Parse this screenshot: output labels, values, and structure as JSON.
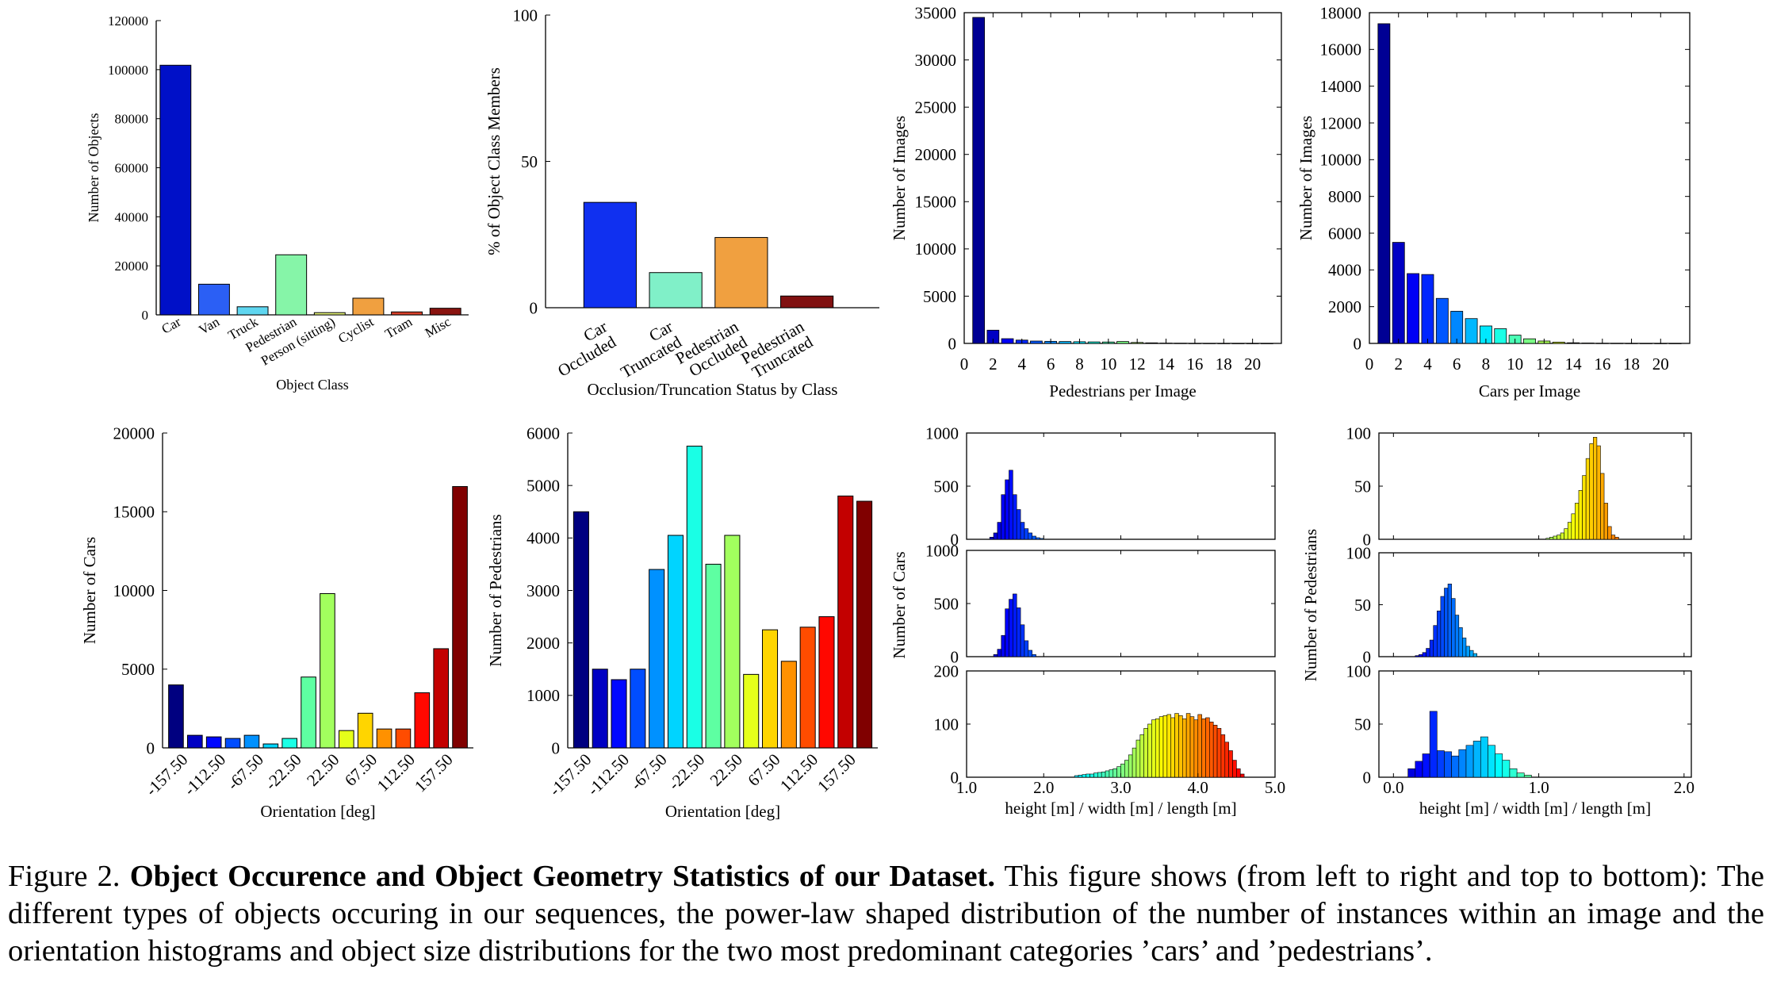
{
  "chart_data": [
    {
      "id": "object-class",
      "type": "bar",
      "categories": [
        "Car",
        "Van",
        "Truck",
        "Pedestrian",
        "Person (sitting)",
        "Cyclist",
        "Tram",
        "Misc"
      ],
      "values": [
        101800,
        12500,
        3300,
        24500,
        900,
        6800,
        1200,
        2700
      ],
      "colors": [
        "#0010c8",
        "#2b5ff5",
        "#5fd6f0",
        "#86f5a8",
        "#e8f87a",
        "#f0a040",
        "#d8402a",
        "#8a1410"
      ],
      "xlabel": "Object Class",
      "ylabel": "Number of Objects",
      "ylim": [
        0,
        120000
      ],
      "yticks": [
        0,
        20000,
        40000,
        60000,
        80000,
        100000,
        120000
      ]
    },
    {
      "id": "occlusion-truncation",
      "type": "bar",
      "categories": [
        [
          "Car",
          "Occluded"
        ],
        [
          "Car",
          "Truncated"
        ],
        [
          "Pedestrian",
          "Occluded"
        ],
        [
          "Pedestrian",
          "Truncated"
        ]
      ],
      "values": [
        36,
        12,
        24,
        4
      ],
      "colors": [
        "#1030f0",
        "#80f0c8",
        "#f0a040",
        "#801010"
      ],
      "xlabel": "Occlusion/Truncation Status by Class",
      "ylabel": "% of Object Class Members",
      "ylim": [
        0,
        100
      ],
      "yticks": [
        0,
        50,
        100
      ]
    },
    {
      "id": "pedestrians-per-image",
      "type": "bar",
      "x": [
        1,
        2,
        3,
        4,
        5,
        6,
        7,
        8,
        9,
        10,
        11,
        12,
        13,
        14,
        15,
        16,
        17,
        18,
        19,
        20,
        21
      ],
      "values": [
        34500,
        1400,
        500,
        350,
        250,
        220,
        200,
        180,
        160,
        150,
        200,
        100,
        60,
        30,
        20,
        10,
        8,
        5,
        3,
        2,
        1
      ],
      "xlabel": "Pedestrians per Image",
      "ylabel": "Number of Images",
      "xlim": [
        0,
        22
      ],
      "ylim": [
        0,
        35000
      ],
      "xticks": [
        0,
        2,
        4,
        6,
        8,
        10,
        12,
        14,
        16,
        18,
        20
      ],
      "yticks": [
        0,
        5000,
        10000,
        15000,
        20000,
        25000,
        30000,
        35000
      ]
    },
    {
      "id": "cars-per-image",
      "type": "bar",
      "x": [
        1,
        2,
        3,
        4,
        5,
        6,
        7,
        8,
        9,
        10,
        11,
        12,
        13,
        14,
        15,
        16,
        17,
        18,
        19,
        20,
        21
      ],
      "values": [
        17400,
        5500,
        3800,
        3750,
        2450,
        1750,
        1350,
        950,
        800,
        450,
        250,
        130,
        70,
        35,
        20,
        10,
        8,
        5,
        3,
        2,
        1
      ],
      "xlabel": "Cars per Image",
      "ylabel": "Number of Images",
      "xlim": [
        0,
        22
      ],
      "ylim": [
        0,
        18000
      ],
      "xticks": [
        0,
        2,
        4,
        6,
        8,
        10,
        12,
        14,
        16,
        18,
        20
      ],
      "yticks": [
        0,
        2000,
        4000,
        6000,
        8000,
        10000,
        12000,
        14000,
        16000,
        18000
      ]
    },
    {
      "id": "car-orientation",
      "type": "bar",
      "categories": [
        "-157.50",
        "",
        "-112.50",
        "",
        "-67.50",
        "",
        "-22.50",
        "",
        "22.50",
        "",
        "67.50",
        "",
        "112.50",
        "",
        "157.50",
        ""
      ],
      "values": [
        4000,
        800,
        700,
        600,
        800,
        250,
        600,
        4500,
        9800,
        1100,
        2200,
        1200,
        1200,
        3500,
        6300,
        16600
      ],
      "xlabel": "Orientation [deg]",
      "ylabel": "Number of Cars",
      "ylim": [
        0,
        20000
      ],
      "yticks": [
        0,
        5000,
        10000,
        15000,
        20000
      ]
    },
    {
      "id": "pedestrian-orientation",
      "type": "bar",
      "categories": [
        "-157.50",
        "",
        "-112.50",
        "",
        "-67.50",
        "",
        "-22.50",
        "",
        "22.50",
        "",
        "67.50",
        "",
        "112.50",
        "",
        "157.50",
        ""
      ],
      "values": [
        4500,
        1500,
        1300,
        1500,
        3400,
        4050,
        5750,
        3500,
        4050,
        1400,
        2250,
        1650,
        2300,
        2500,
        4800,
        4700
      ],
      "xlabel": "Orientation [deg]",
      "ylabel": "Number of Pedestrians",
      "ylim": [
        0,
        6000
      ],
      "yticks": [
        0,
        1000,
        2000,
        3000,
        4000,
        5000,
        6000
      ]
    },
    {
      "id": "car-dimensions",
      "type": "bar",
      "xlabel": "height [m]  /  width [m]  /  length [m]",
      "ylabel": "Number of Cars",
      "xlim": [
        1.0,
        5.0
      ],
      "xticks": [
        "1.0",
        "2.0",
        "3.0",
        "4.0",
        "5.0"
      ],
      "series": [
        {
          "name": "height [m]",
          "ylim": [
            0,
            1000
          ],
          "yticks": [
            0,
            500,
            1000
          ],
          "x_start": 1.3,
          "bin_width": 0.05,
          "values": [
            20,
            60,
            160,
            420,
            560,
            650,
            420,
            280,
            160,
            100,
            60,
            30,
            15,
            8
          ]
        },
        {
          "name": "width [m]",
          "ylim": [
            0,
            1000
          ],
          "yticks": [
            0,
            500,
            1000
          ],
          "x_start": 1.35,
          "bin_width": 0.05,
          "values": [
            20,
            70,
            200,
            450,
            540,
            590,
            460,
            300,
            150,
            60,
            20
          ]
        },
        {
          "name": "length [m]",
          "ylim": [
            0,
            200
          ],
          "yticks": [
            0,
            100,
            200
          ],
          "x_start": 2.4,
          "bin_width": 0.05,
          "values": [
            3,
            4,
            5,
            6,
            6,
            8,
            9,
            10,
            12,
            14,
            16,
            20,
            25,
            32,
            42,
            55,
            70,
            80,
            92,
            100,
            108,
            110,
            114,
            116,
            118,
            112,
            120,
            116,
            110,
            120,
            114,
            108,
            118,
            110,
            112,
            104,
            98,
            92,
            80,
            66,
            50,
            32,
            16,
            6
          ]
        }
      ]
    },
    {
      "id": "pedestrian-dimensions",
      "type": "bar",
      "xlabel": "height [m]  /  width [m]  /  length [m]",
      "ylabel": "Number of Pedestrians",
      "xlim": [
        -0.1,
        2.05
      ],
      "xticks": [
        "0.0",
        "1.0",
        "2.0"
      ],
      "series": [
        {
          "name": "height [m]",
          "ylim": [
            0,
            100
          ],
          "yticks": [
            0,
            50,
            100
          ],
          "x_start": 1.05,
          "bin_width": 0.025,
          "values": [
            1,
            2,
            3,
            4,
            6,
            10,
            16,
            24,
            34,
            46,
            60,
            76,
            90,
            96,
            88,
            62,
            34,
            12,
            4,
            2
          ]
        },
        {
          "name": "width [m]",
          "ylim": [
            0,
            100
          ],
          "yticks": [
            0,
            50,
            100
          ],
          "x_start": 0.15,
          "bin_width": 0.025,
          "values": [
            1,
            2,
            4,
            8,
            16,
            30,
            44,
            58,
            66,
            70,
            56,
            40,
            28,
            18,
            10,
            6,
            3
          ]
        },
        {
          "name": "length [m]",
          "ylim": [
            0,
            100
          ],
          "yticks": [
            0,
            50,
            100
          ],
          "x_start": 0.1,
          "bin_width": 0.05,
          "values": [
            8,
            15,
            22,
            62,
            25,
            24,
            20,
            26,
            30,
            34,
            38,
            30,
            22,
            16,
            8,
            4,
            2
          ]
        }
      ]
    }
  ],
  "caption": {
    "prefix": "Figure 2.",
    "bold_title": "Object Occurence and Object Geometry Statistics of our Dataset.",
    "body": "This figure shows (from left to right and top to bottom): The different types of objects occuring in our sequences, the power-law shaped distribution of the number of instances within an image and the orientation histograms and object size distributions for the two most predominant categories ’cars’ and ’pedestrians’."
  }
}
